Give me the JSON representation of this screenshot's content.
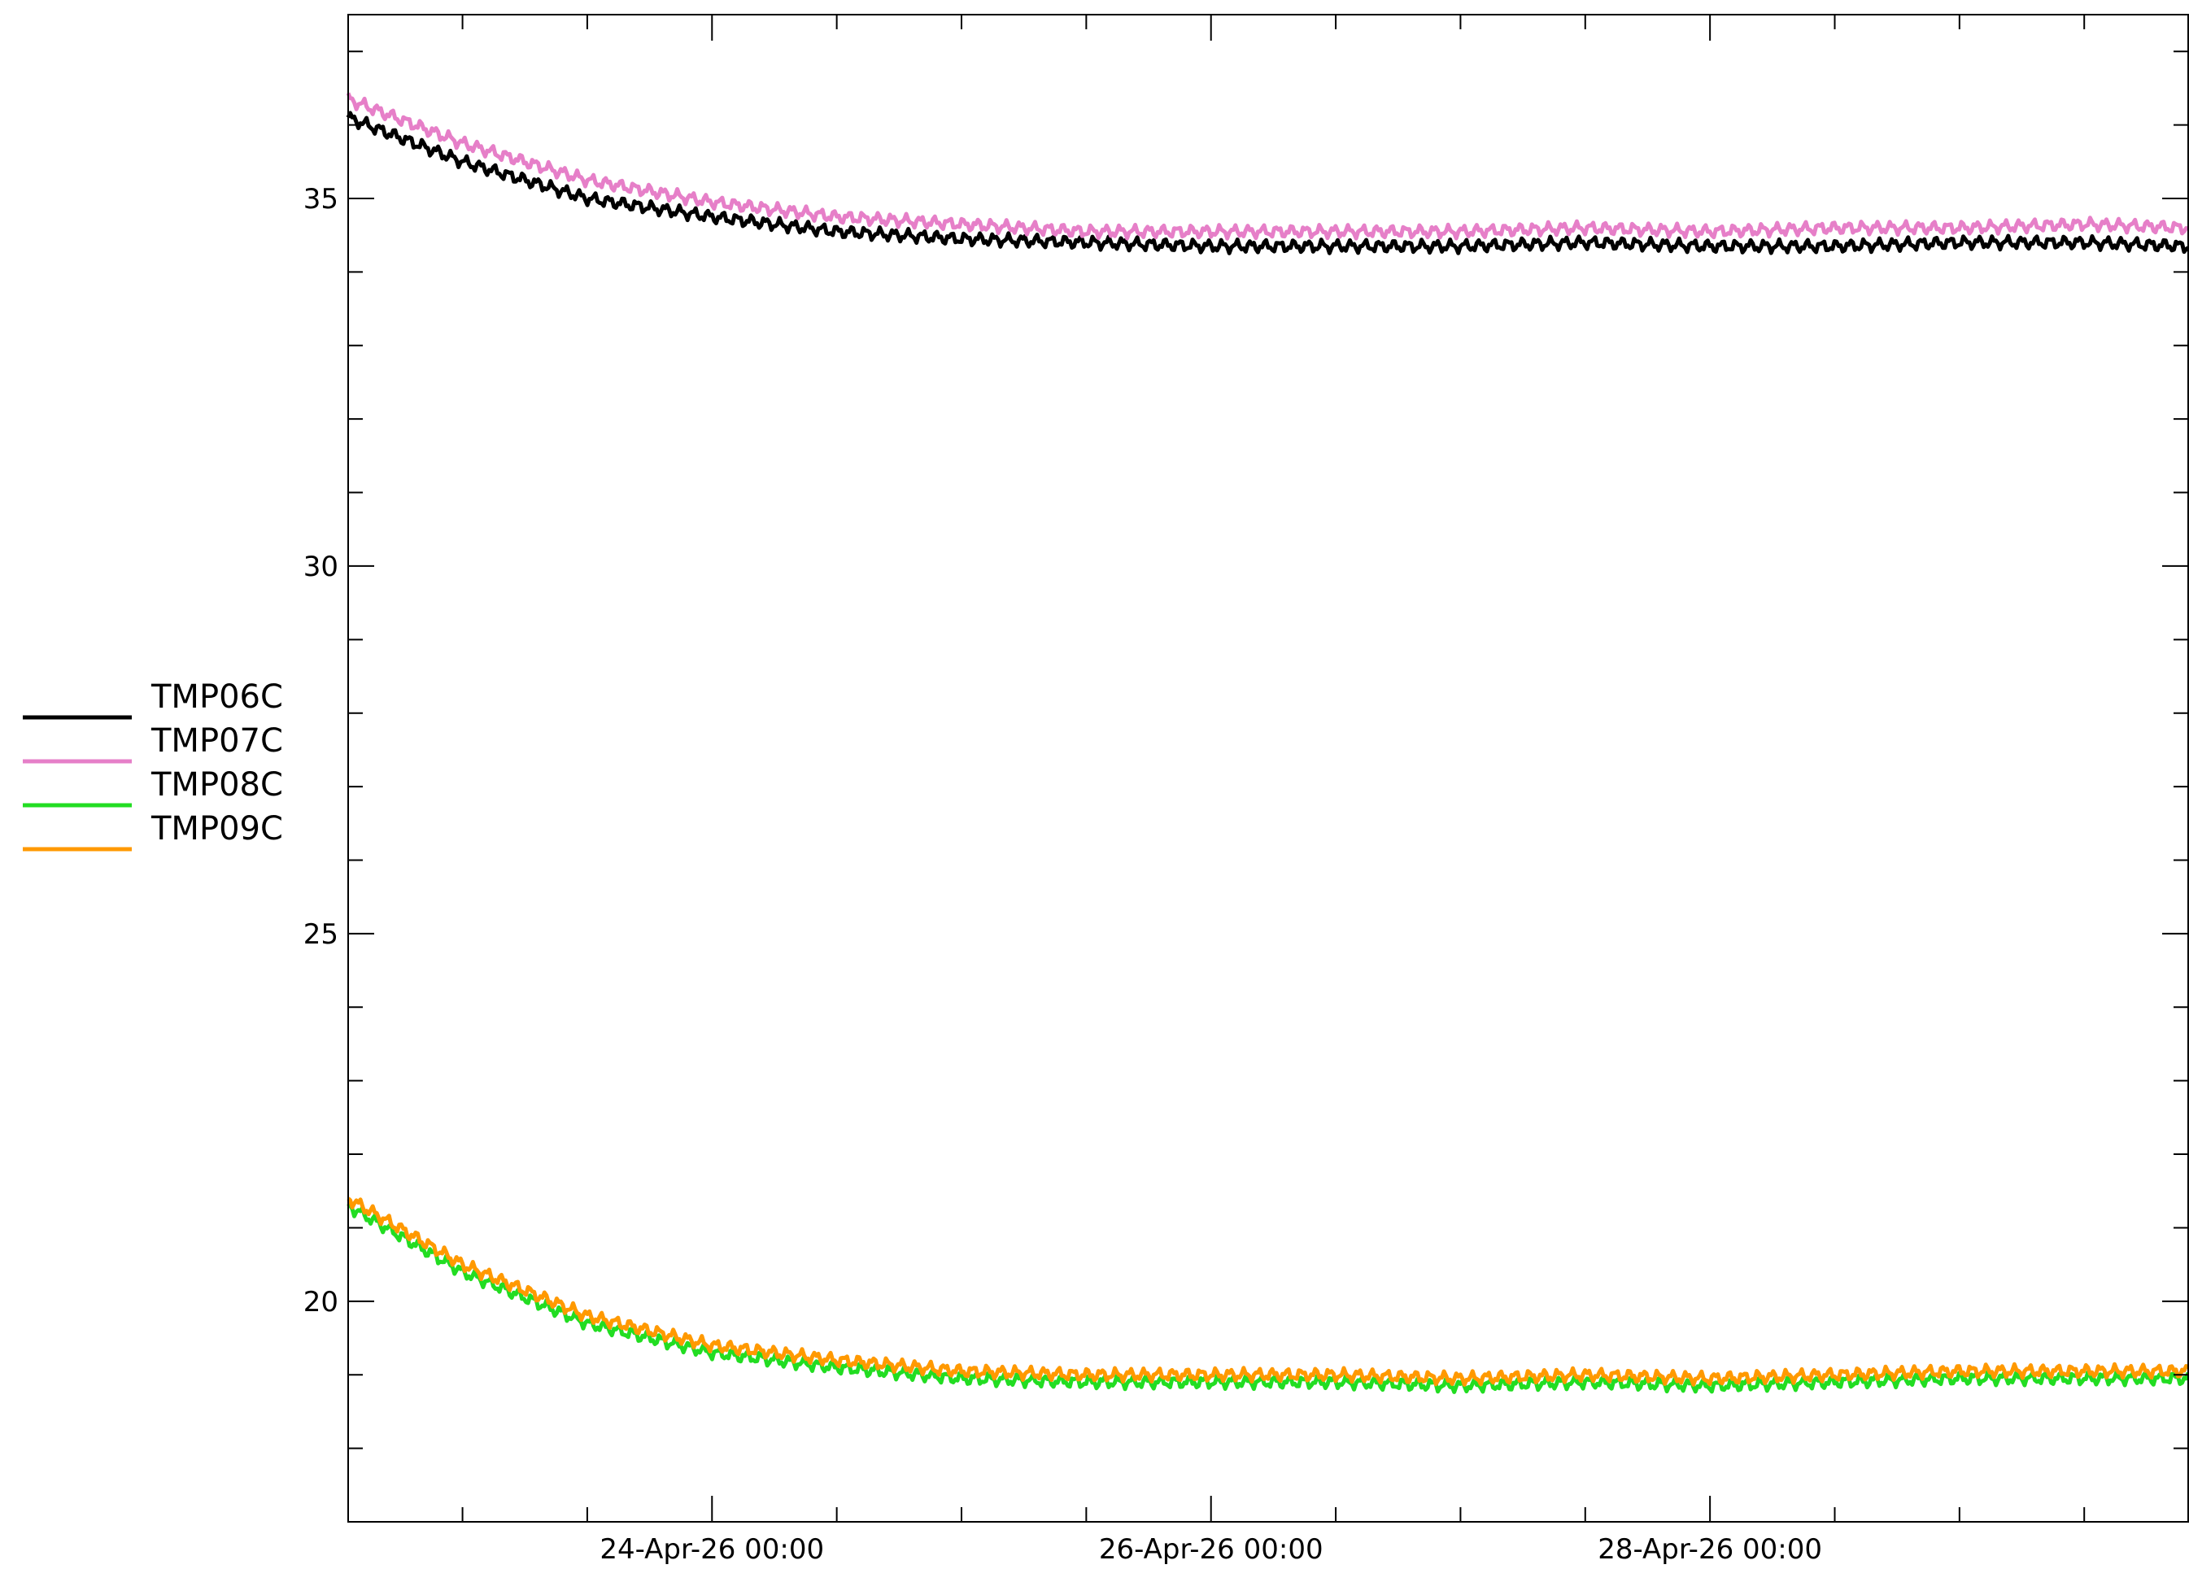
{
  "chart_data": {
    "type": "line",
    "title": "",
    "xlabel": "",
    "ylabel": "",
    "x_axis_type": "datetime",
    "xlim": [
      "2026-04-22 13:00",
      "2026-04-29 22:00"
    ],
    "ylim": [
      17,
      37.5
    ],
    "grid": false,
    "legend_position": "left",
    "x_major_ticks": [
      {
        "value": "2026-04-24 00:00",
        "label": "24-Apr-26 00:00"
      },
      {
        "value": "2026-04-26 00:00",
        "label": "26-Apr-26 00:00"
      },
      {
        "value": "2026-04-28 00:00",
        "label": "28-Apr-26 00:00"
      }
    ],
    "x_minor_ticks": [
      "2026-04-23 00:00",
      "2026-04-23 12:00",
      "2026-04-24 12:00",
      "2026-04-25 00:00",
      "2026-04-25 12:00",
      "2026-04-26 12:00",
      "2026-04-27 00:00",
      "2026-04-27 12:00",
      "2026-04-28 12:00",
      "2026-04-29 00:00",
      "2026-04-29 12:00"
    ],
    "y_major_ticks": [
      {
        "value": 20,
        "label": "20"
      },
      {
        "value": 25,
        "label": "25"
      },
      {
        "value": 30,
        "label": "30"
      },
      {
        "value": 35,
        "label": "35"
      }
    ],
    "y_minor_ticks": [
      18,
      19,
      21,
      22,
      23,
      24,
      26,
      27,
      28,
      29,
      31,
      32,
      33,
      34,
      36,
      37
    ],
    "x": [
      "2026-04-22 13:00",
      "2026-04-23 00:00",
      "2026-04-23 12:00",
      "2026-04-24 00:00",
      "2026-04-24 12:00",
      "2026-04-25 00:00",
      "2026-04-25 12:00",
      "2026-04-26 00:00",
      "2026-04-26 12:00",
      "2026-04-27 00:00",
      "2026-04-27 12:00",
      "2026-04-28 00:00",
      "2026-04-28 12:00",
      "2026-04-29 00:00",
      "2026-04-29 12:00",
      "2026-04-29 22:00"
    ],
    "series": [
      {
        "name": "TMP06C",
        "color": "#000000",
        "values": [
          36.1,
          35.5,
          35.0,
          34.75,
          34.55,
          34.45,
          34.4,
          34.35,
          34.35,
          34.35,
          34.4,
          34.35,
          34.35,
          34.4,
          34.4,
          34.35
        ]
      },
      {
        "name": "TMP07C",
        "color": "#e67fc8",
        "values": [
          36.35,
          35.75,
          35.25,
          34.95,
          34.75,
          34.65,
          34.55,
          34.55,
          34.55,
          34.55,
          34.6,
          34.55,
          34.6,
          34.6,
          34.65,
          34.6
        ]
      },
      {
        "name": "TMP08C",
        "color": "#22dd22",
        "values": [
          21.3,
          20.4,
          19.7,
          19.3,
          19.1,
          18.95,
          18.9,
          18.9,
          18.9,
          18.85,
          18.9,
          18.85,
          18.9,
          18.95,
          18.95,
          18.95
        ]
      },
      {
        "name": "TMP09C",
        "color": "#ff9900",
        "values": [
          21.4,
          20.5,
          19.8,
          19.4,
          19.2,
          19.05,
          19.0,
          19.0,
          19.0,
          18.95,
          19.0,
          18.95,
          19.0,
          19.05,
          19.05,
          19.05
        ]
      }
    ]
  }
}
